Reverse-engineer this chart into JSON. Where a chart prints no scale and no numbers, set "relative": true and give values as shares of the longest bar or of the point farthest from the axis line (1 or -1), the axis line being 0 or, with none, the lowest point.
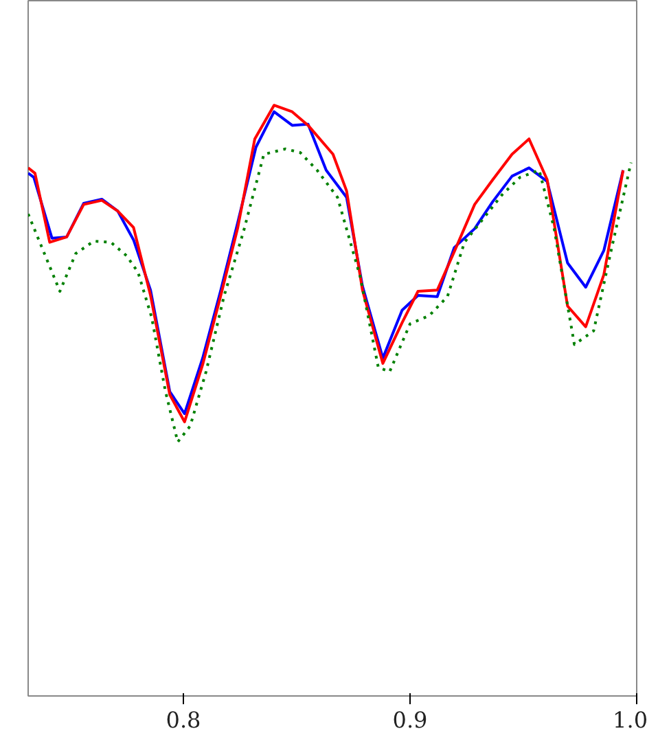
{
  "chart_data": {
    "type": "line",
    "relative": true,
    "tick_labels": "x",
    "xlim": [
      0.7315,
      1.0
    ],
    "xticks": [
      0.8,
      0.9,
      {
        "value": 1.0,
        "label": "1.0"
      }
    ],
    "series": [
      {
        "color": "#0000ff",
        "line_style": "solid",
        "x": [
          0.7315,
          0.734,
          0.742,
          0.7485,
          0.756,
          0.764,
          0.771,
          0.778,
          0.7855,
          0.794,
          0.8005,
          0.8085,
          0.8165,
          0.824,
          0.832,
          0.84,
          0.848,
          0.855,
          0.863,
          0.872,
          0.879,
          0.888,
          0.8965,
          0.9035,
          0.912,
          0.9195,
          0.9285,
          0.9365,
          0.945,
          0.9525,
          0.9605,
          0.9695,
          0.9775,
          0.9855,
          0.994
        ],
        "values": [
          0.885,
          0.878,
          0.775,
          0.777,
          0.834,
          0.841,
          0.821,
          0.772,
          0.687,
          0.515,
          0.478,
          0.572,
          0.687,
          0.802,
          0.929,
          0.989,
          0.966,
          0.968,
          0.89,
          0.844,
          0.694,
          0.572,
          0.653,
          0.678,
          0.676,
          0.759,
          0.791,
          0.837,
          0.88,
          0.894,
          0.871,
          0.733,
          0.692,
          0.754,
          0.89
        ]
      },
      {
        "color": "#ff0000",
        "line_style": "solid",
        "x": [
          0.7315,
          0.7345,
          0.741,
          0.7485,
          0.756,
          0.764,
          0.771,
          0.778,
          0.7855,
          0.794,
          0.8005,
          0.8085,
          0.8165,
          0.824,
          0.8315,
          0.84,
          0.848,
          0.855,
          0.866,
          0.872,
          0.879,
          0.888,
          0.8965,
          0.9035,
          0.912,
          0.9195,
          0.9285,
          0.9365,
          0.945,
          0.9525,
          0.9605,
          0.9695,
          0.9775,
          0.9855,
          0.994
        ],
        "values": [
          0.894,
          0.885,
          0.768,
          0.777,
          0.832,
          0.839,
          0.821,
          0.793,
          0.678,
          0.51,
          0.464,
          0.561,
          0.678,
          0.793,
          0.943,
          1.0,
          0.989,
          0.966,
          0.917,
          0.855,
          0.687,
          0.563,
          0.632,
          0.685,
          0.687,
          0.752,
          0.832,
          0.874,
          0.917,
          0.943,
          0.874,
          0.66,
          0.625,
          0.713,
          0.89
        ]
      },
      {
        "color": "#008000",
        "line_style": "dotted",
        "x": [
          0.7315,
          0.7455,
          0.7525,
          0.7605,
          0.768,
          0.775,
          0.78,
          0.786,
          0.792,
          0.7975,
          0.803,
          0.81,
          0.818,
          0.8265,
          0.8355,
          0.845,
          0.8515,
          0.859,
          0.868,
          0.878,
          0.886,
          0.891,
          0.9,
          0.9085,
          0.9165,
          0.924,
          0.9325,
          0.9405,
          0.9485,
          0.957,
          0.9635,
          0.9725,
          0.981,
          0.989,
          0.9975
        ],
        "values": [
          0.816,
          0.685,
          0.749,
          0.77,
          0.768,
          0.745,
          0.717,
          0.641,
          0.517,
          0.43,
          0.457,
          0.549,
          0.678,
          0.786,
          0.917,
          0.926,
          0.92,
          0.89,
          0.844,
          0.71,
          0.556,
          0.549,
          0.63,
          0.644,
          0.676,
          0.768,
          0.809,
          0.848,
          0.878,
          0.89,
          0.793,
          0.595,
          0.618,
          0.759,
          0.903
        ]
      }
    ]
  }
}
